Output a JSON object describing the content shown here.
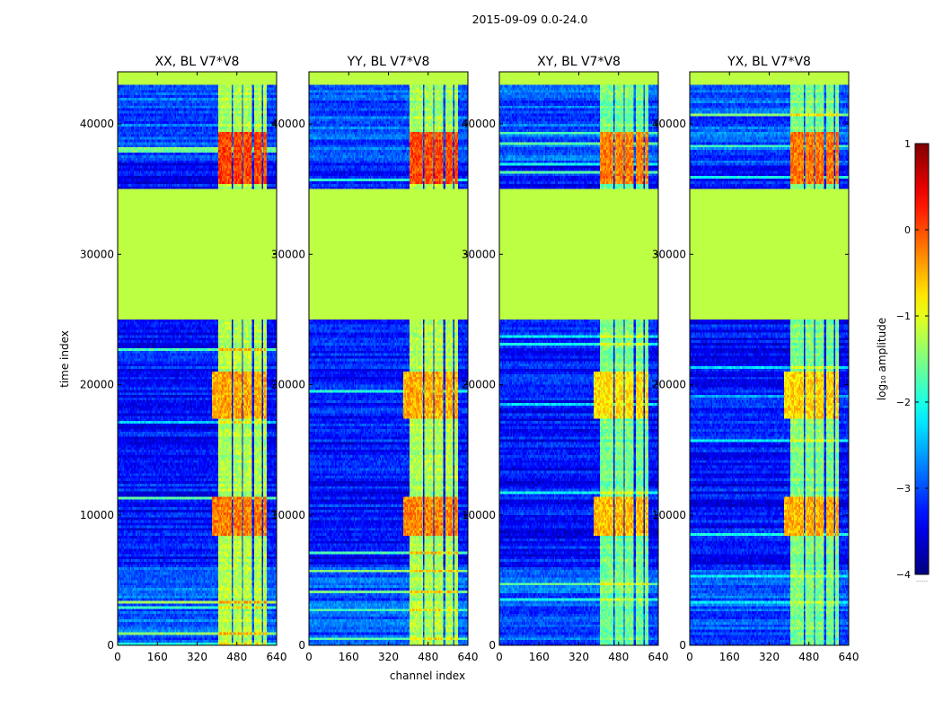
{
  "figure": {
    "suptitle": "2015-09-09 0.0-24.0"
  },
  "chart_data": {
    "type": "heatmap",
    "title": "2015-09-09 0.0-24.0",
    "xlabel": "channel index",
    "ylabel": "time index",
    "xlim": [
      0,
      640
    ],
    "ylim": [
      0,
      44000
    ],
    "xticks": [
      0,
      160,
      320,
      480,
      640
    ],
    "yticks": [
      0,
      10000,
      20000,
      30000,
      40000
    ],
    "panels": [
      {
        "title": "XX, BL V7*V8",
        "pol": "XX"
      },
      {
        "title": "YY, BL V7*V8",
        "pol": "YY"
      },
      {
        "title": "XY, BL V7*V8",
        "pol": "XY"
      },
      {
        "title": "YX, BL V7*V8",
        "pol": "YX"
      }
    ],
    "colorbar": {
      "label": "log₁₀ amplitude",
      "min": -4,
      "max": 1,
      "ticks": [
        1,
        0,
        -1,
        -2,
        -3,
        -4
      ],
      "tick_labels": [
        "1",
        "0",
        "−1",
        "−2",
        "−3",
        "−4"
      ],
      "colormap": "jet",
      "bottom_note": "......"
    },
    "flagged_time_ranges": [
      [
        25000,
        35000
      ],
      [
        43000,
        44000
      ]
    ],
    "masked_fill_value": -1.2,
    "background_level": -3.3,
    "bright_channel_band": [
      405,
      600
    ],
    "bright_channel_gaps": [
      [
        458,
        464
      ],
      [
        500,
        506
      ],
      [
        542,
        548
      ],
      [
        580,
        584
      ]
    ],
    "hot_time_bands": [
      {
        "range": [
          8500,
          11500
        ],
        "channels": [
          380,
          600
        ],
        "level": -0.4
      },
      {
        "range": [
          17500,
          21000
        ],
        "channels": [
          380,
          600
        ],
        "level": -0.6
      },
      {
        "range": [
          35500,
          39500
        ],
        "channels": [
          405,
          600
        ],
        "level": -0.1
      }
    ],
    "lowres_channels_per_cell": 5,
    "lowres_time_per_cell": 200
  }
}
